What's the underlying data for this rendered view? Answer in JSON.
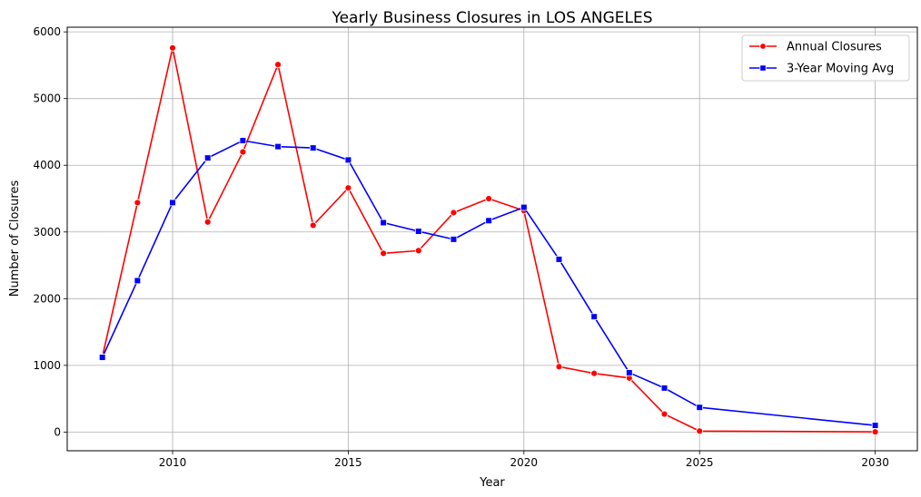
{
  "chart_data": {
    "type": "line",
    "title": "Yearly Business Closures in LOS ANGELES",
    "xlabel": "Year",
    "ylabel": "Number of Closures",
    "xlim": [
      2007,
      2031.2
    ],
    "ylim": [
      -280,
      6070
    ],
    "xticks": [
      2010,
      2015,
      2020,
      2025,
      2030
    ],
    "yticks": [
      0,
      1000,
      2000,
      3000,
      4000,
      5000,
      6000
    ],
    "grid": true,
    "legend_position": "top-right",
    "series": [
      {
        "name": "Annual Closures",
        "color": "#ff0000",
        "marker": "circle",
        "points": [
          {
            "x": 2008,
            "y": 1130
          },
          {
            "x": 2009,
            "y": 3440
          },
          {
            "x": 2010,
            "y": 5760
          },
          {
            "x": 2011,
            "y": 3150
          },
          {
            "x": 2012,
            "y": 4200
          },
          {
            "x": 2013,
            "y": 5510
          },
          {
            "x": 2014,
            "y": 3100
          },
          {
            "x": 2015,
            "y": 3660
          },
          {
            "x": 2016,
            "y": 2680
          },
          {
            "x": 2017,
            "y": 2720
          },
          {
            "x": 2018,
            "y": 3290
          },
          {
            "x": 2019,
            "y": 3500
          },
          {
            "x": 2020,
            "y": 3320
          },
          {
            "x": 2021,
            "y": 980
          },
          {
            "x": 2022,
            "y": 880
          },
          {
            "x": 2023,
            "y": 810
          },
          {
            "x": 2024,
            "y": 270
          },
          {
            "x": 2025,
            "y": 15
          },
          {
            "x": 2030,
            "y": 3
          }
        ]
      },
      {
        "name": "3-Year Moving Avg",
        "color": "#0000ff",
        "marker": "square",
        "points": [
          {
            "x": 2008,
            "y": 1120
          },
          {
            "x": 2009,
            "y": 2270
          },
          {
            "x": 2010,
            "y": 3440
          },
          {
            "x": 2011,
            "y": 4110
          },
          {
            "x": 2012,
            "y": 4370
          },
          {
            "x": 2013,
            "y": 4280
          },
          {
            "x": 2014,
            "y": 4260
          },
          {
            "x": 2015,
            "y": 4080
          },
          {
            "x": 2016,
            "y": 3140
          },
          {
            "x": 2017,
            "y": 3010
          },
          {
            "x": 2018,
            "y": 2890
          },
          {
            "x": 2019,
            "y": 3170
          },
          {
            "x": 2020,
            "y": 3370
          },
          {
            "x": 2021,
            "y": 2590
          },
          {
            "x": 2022,
            "y": 1730
          },
          {
            "x": 2023,
            "y": 890
          },
          {
            "x": 2024,
            "y": 660
          },
          {
            "x": 2025,
            "y": 370
          },
          {
            "x": 2030,
            "y": 100
          }
        ]
      }
    ]
  }
}
